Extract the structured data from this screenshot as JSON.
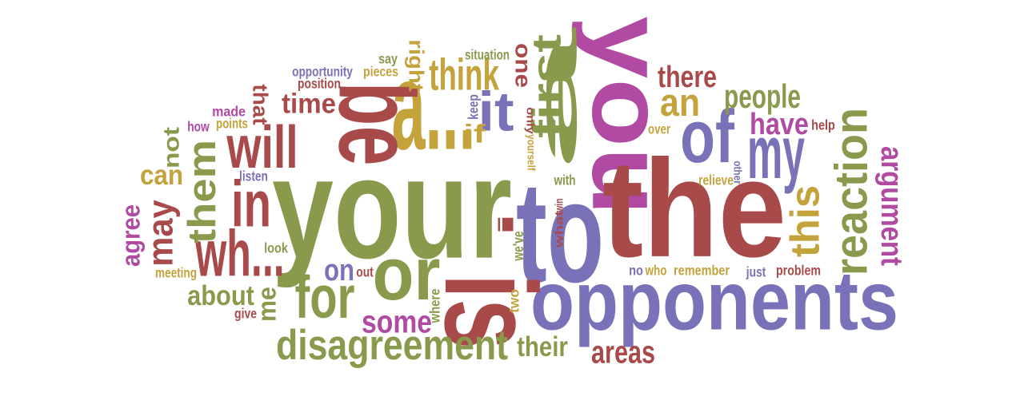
{
  "colors": {
    "green": "#8a9a4c",
    "red": "#a84a4a",
    "purple": "#7a72b8",
    "magenta": "#b04aa2",
    "gold": "#c4a23c"
  },
  "words": [
    {
      "text": "you",
      "color": "magenta"
    },
    {
      "text": "your",
      "color": "green"
    },
    {
      "text": "to",
      "color": "purple"
    },
    {
      "text": "the",
      "color": "red"
    },
    {
      "text": "opponents",
      "color": "purple"
    },
    {
      "text": "a...",
      "color": "gold"
    },
    {
      "text": "be",
      "color": "red"
    },
    {
      "text": "a",
      "color": "green"
    },
    {
      "text": "is",
      "color": "red"
    },
    {
      "text": "or",
      "color": "green"
    },
    {
      "text": "it",
      "color": "purple"
    },
    {
      "text": "of",
      "color": "purple"
    },
    {
      "text": "my",
      "color": "purple"
    },
    {
      "text": "will",
      "color": "red"
    },
    {
      "text": "in",
      "color": "red"
    },
    {
      "text": "wh...",
      "color": "red"
    },
    {
      "text": "for",
      "color": "green"
    },
    {
      "text": "them",
      "color": "green"
    },
    {
      "text": "reaction",
      "color": "green"
    },
    {
      "text": "disagreement",
      "color": "green"
    },
    {
      "text": "think",
      "color": "gold"
    },
    {
      "text": "first",
      "color": "green"
    },
    {
      "text": "an",
      "color": "gold"
    },
    {
      "text": "this",
      "color": "gold"
    },
    {
      "text": "argument",
      "color": "magenta"
    },
    {
      "text": "people",
      "color": "green"
    },
    {
      "text": "there",
      "color": "red"
    },
    {
      "text": "have",
      "color": "magenta"
    },
    {
      "text": "some",
      "color": "magenta"
    },
    {
      "text": "areas",
      "color": "red"
    },
    {
      "text": "their",
      "color": "green"
    },
    {
      "text": "about",
      "color": "green"
    },
    {
      "text": "time",
      "color": "red"
    },
    {
      "text": "can",
      "color": "gold"
    },
    {
      "text": "may",
      "color": "red"
    },
    {
      "text": "agree",
      "color": "magenta"
    },
    {
      "text": "not",
      "color": "green"
    },
    {
      "text": "on",
      "color": "purple"
    },
    {
      "text": "me",
      "color": "green"
    },
    {
      "text": "one",
      "color": "red"
    },
    {
      "text": "that",
      "color": "red"
    },
    {
      "text": "right",
      "color": "gold"
    },
    {
      "text": "if",
      "color": "gold"
    },
    {
      "text": "i",
      "color": "red"
    },
    {
      "text": "we've",
      "color": "green"
    },
    {
      "text": "opportunity",
      "color": "purple"
    },
    {
      "text": "position",
      "color": "red"
    },
    {
      "text": "pieces",
      "color": "gold"
    },
    {
      "text": "say",
      "color": "green"
    },
    {
      "text": "situation",
      "color": "green"
    },
    {
      "text": "made",
      "color": "magenta"
    },
    {
      "text": "points",
      "color": "gold"
    },
    {
      "text": "how",
      "color": "magenta"
    },
    {
      "text": "listen",
      "color": "purple"
    },
    {
      "text": "look",
      "color": "green"
    },
    {
      "text": "meeting",
      "color": "gold"
    },
    {
      "text": "out",
      "color": "red"
    },
    {
      "text": "give",
      "color": "red"
    },
    {
      "text": "where",
      "color": "green"
    },
    {
      "text": "two",
      "color": "gold"
    },
    {
      "text": "keep",
      "color": "purple"
    },
    {
      "text": "only",
      "color": "red"
    },
    {
      "text": "yourself",
      "color": "gold"
    },
    {
      "text": "with",
      "color": "green"
    },
    {
      "text": "what",
      "color": "red"
    },
    {
      "text": "win",
      "color": "red"
    },
    {
      "text": "over",
      "color": "gold"
    },
    {
      "text": "relieve",
      "color": "gold"
    },
    {
      "text": "other",
      "color": "purple"
    },
    {
      "text": "help",
      "color": "red"
    },
    {
      "text": "no",
      "color": "purple"
    },
    {
      "text": "who",
      "color": "gold"
    },
    {
      "text": "remember",
      "color": "gold"
    },
    {
      "text": "just",
      "color": "purple"
    },
    {
      "text": "problem",
      "color": "red"
    }
  ]
}
